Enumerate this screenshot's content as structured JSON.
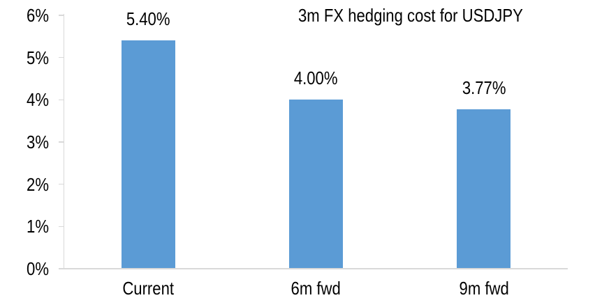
{
  "chart_data": {
    "type": "bar",
    "title": "3m FX hedging cost for USDJPY",
    "categories": [
      "Current",
      "6m fwd",
      "9m fwd"
    ],
    "values": [
      5.4,
      4.0,
      3.77
    ],
    "value_labels": [
      "5.40%",
      "4.00%",
      "3.77%"
    ],
    "xlabel": "",
    "ylabel": "",
    "ylim": [
      0,
      6
    ],
    "yticks": [
      0,
      1,
      2,
      3,
      4,
      5,
      6
    ],
    "ytick_labels": [
      "0%",
      "1%",
      "2%",
      "3%",
      "4%",
      "5%",
      "6%"
    ],
    "grid": false,
    "legend_position": "none",
    "colors": {
      "bar": "#5B9BD5",
      "axis": "#D9D9D9",
      "text": "#000000",
      "background": "#FFFFFF"
    }
  }
}
